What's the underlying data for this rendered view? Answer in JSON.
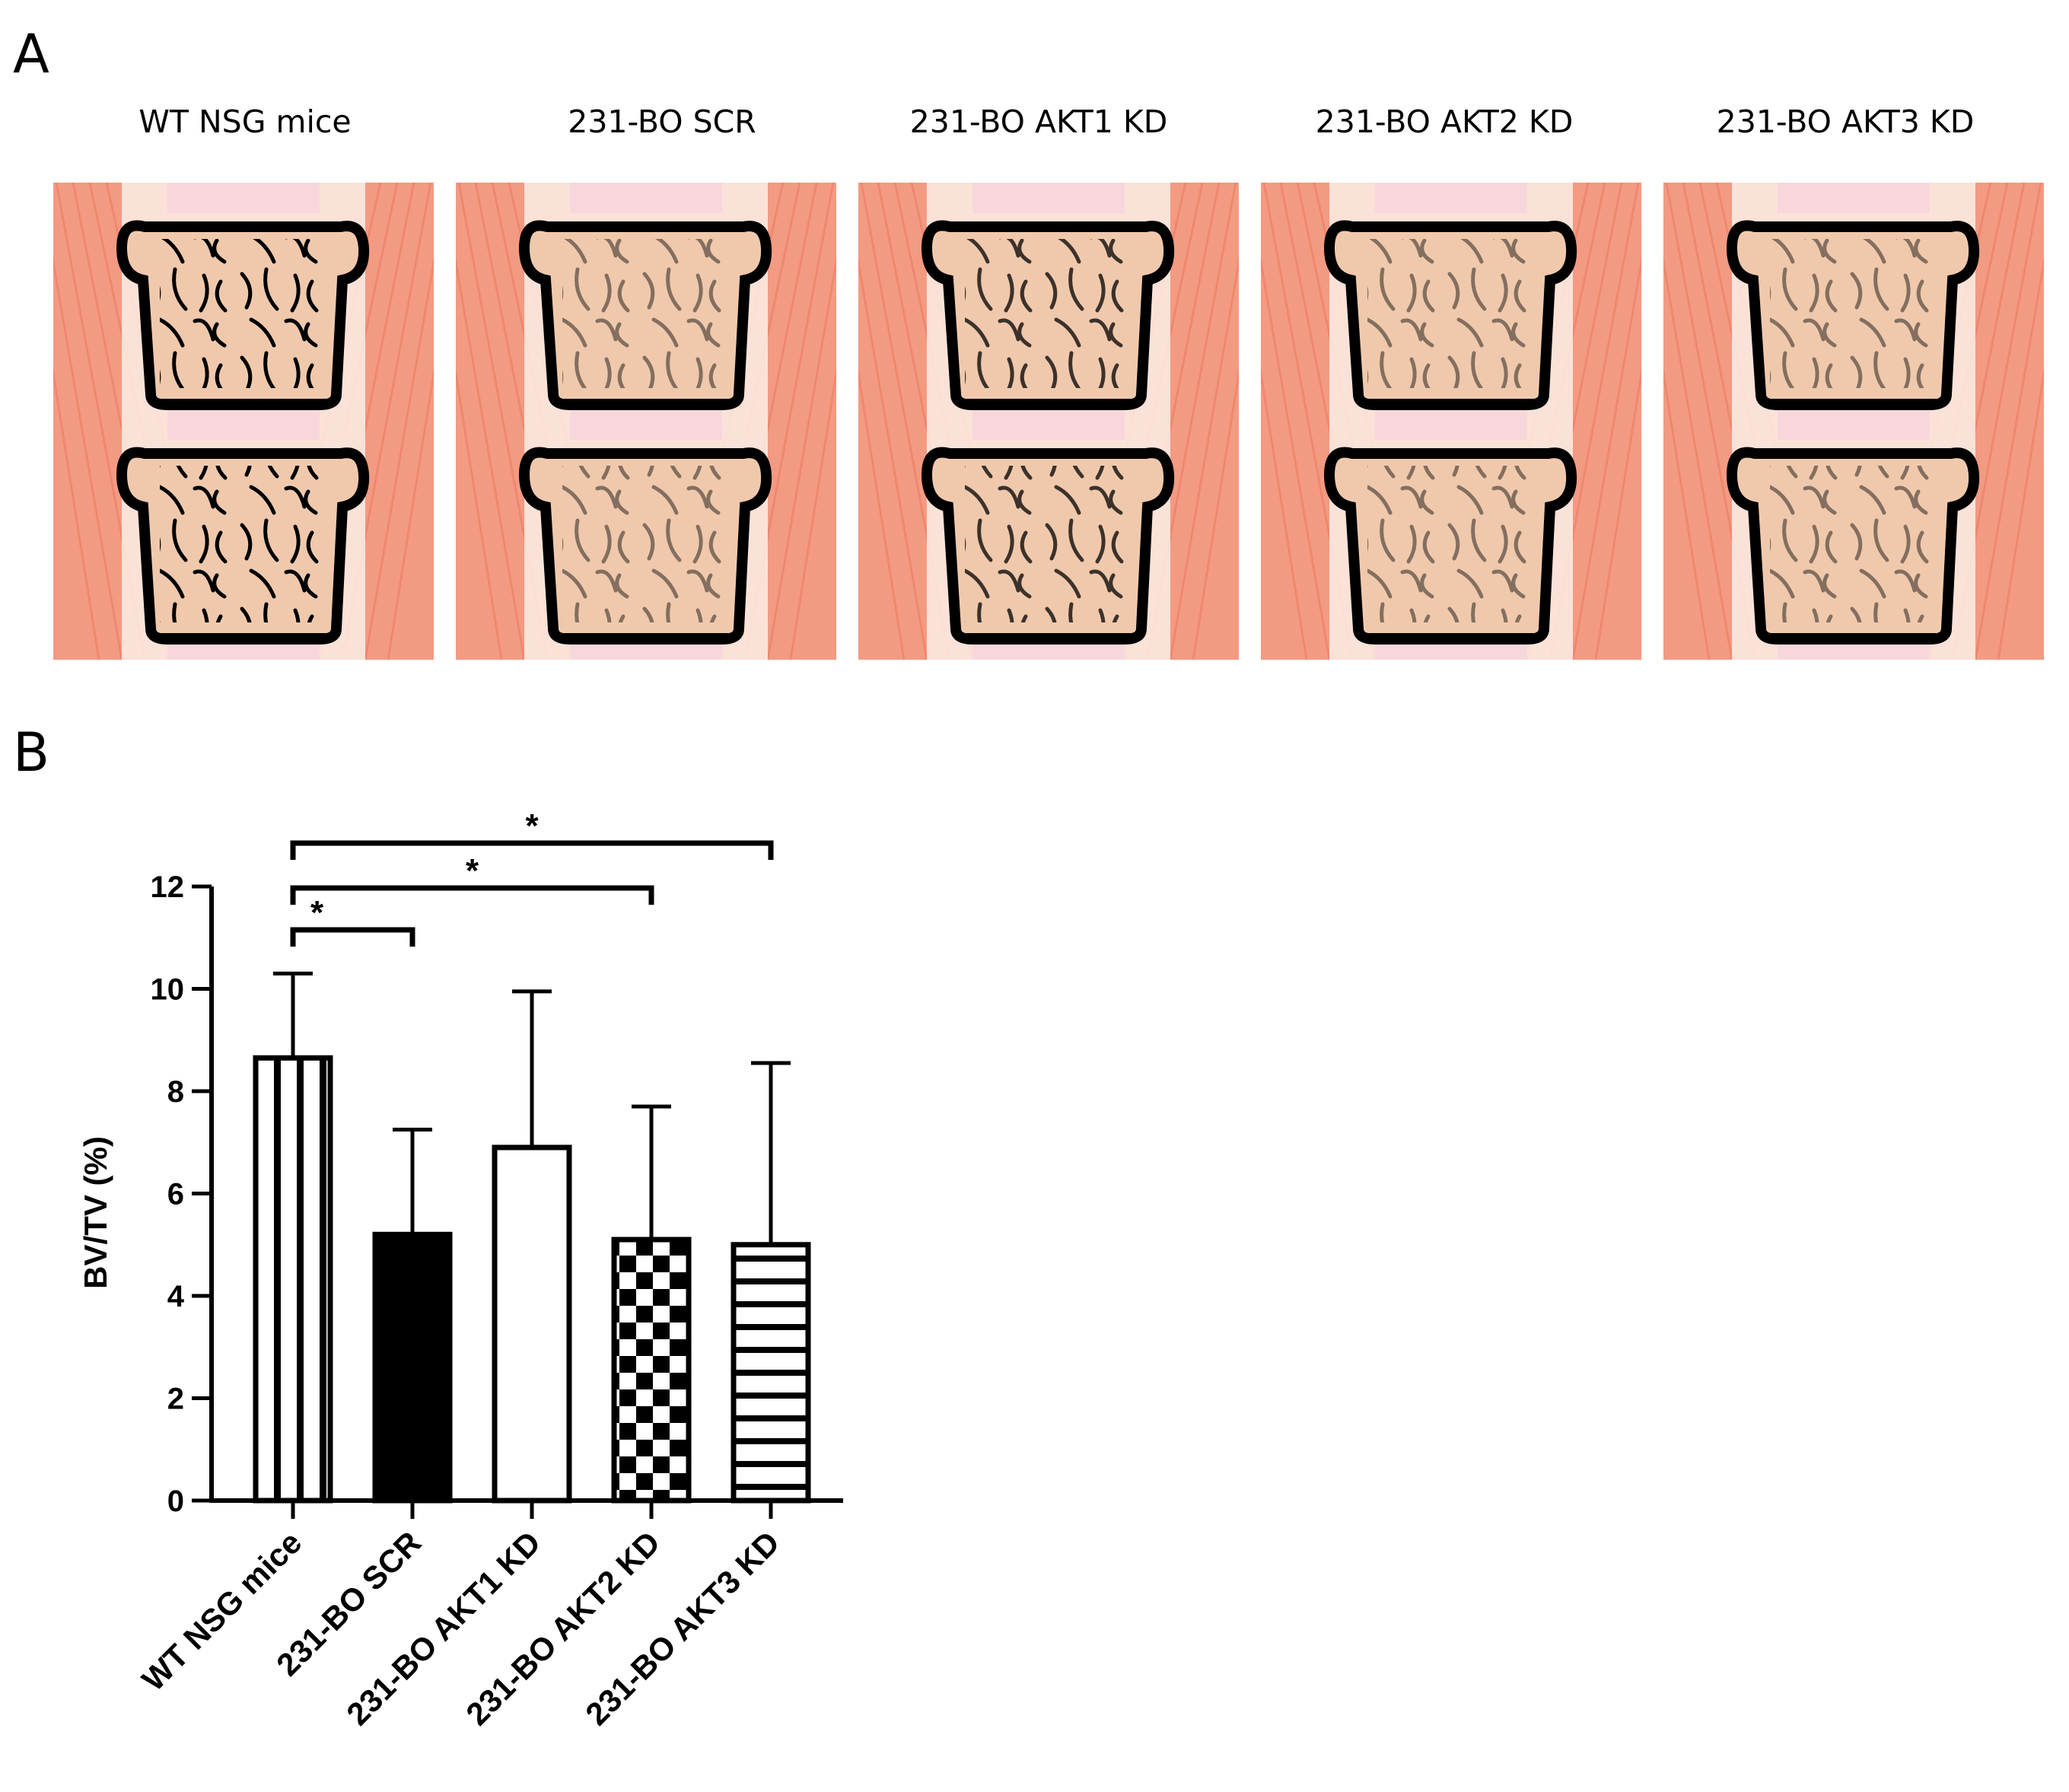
{
  "panels": {
    "a_letter": "A",
    "b_letter": "B"
  },
  "images": [
    {
      "title": "WT NSG mice",
      "tissue_density": "high"
    },
    {
      "title": "231-BO SCR",
      "tissue_density": "low"
    },
    {
      "title": "231-BO AKT1 KD",
      "tissue_density": "medium"
    },
    {
      "title": "231-BO AKT2 KD",
      "tissue_density": "low"
    },
    {
      "title": "231-BO AKT3 KD",
      "tissue_density": "low"
    }
  ],
  "colors": {
    "muscle": "#f39a82",
    "muscle_dark": "#e8664a",
    "marrow": "#f0c9ad",
    "bone": "#000000",
    "disc": "#f7d7dc",
    "growth_plate": "#e0407a"
  },
  "chart_data": {
    "type": "bar",
    "title": "",
    "xlabel": "",
    "ylabel": "BV/TV (%)",
    "ylim": [
      0,
      12
    ],
    "yticks": [
      "0",
      "2",
      "4",
      "6",
      "8",
      "10",
      "12"
    ],
    "categories": [
      "WT NSG mice",
      "231-BO SCR",
      "231-BO AKT1 KD",
      "231-BO AKT2 KD",
      "231-BO AKT3 KD"
    ],
    "values": [
      8.65,
      5.2,
      6.9,
      5.1,
      5.0
    ],
    "error_upper": [
      10.3,
      7.25,
      9.95,
      7.7,
      8.55
    ],
    "patterns": [
      "vertical-stripes",
      "solid-black",
      "white",
      "checkerboard",
      "horizontal-stripes"
    ],
    "significance": [
      {
        "from": 0,
        "to": 1,
        "label": "*"
      },
      {
        "from": 0,
        "to": 3,
        "label": "*"
      },
      {
        "from": 0,
        "to": 4,
        "label": "*"
      }
    ]
  }
}
